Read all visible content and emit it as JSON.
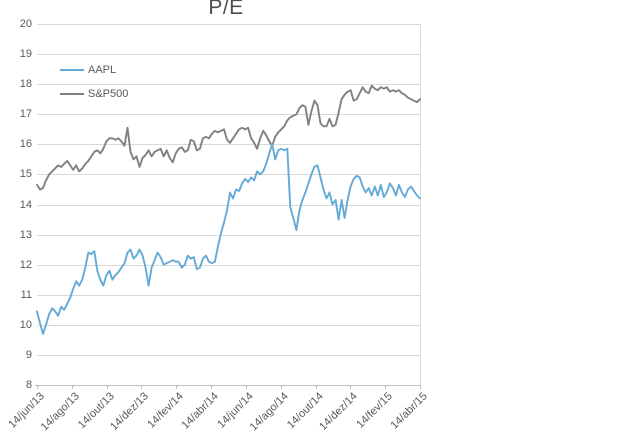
{
  "title": "P/E",
  "colors": {
    "aapl_line": "#64aad7",
    "sp500_line": "#808080",
    "gridline": "#d9d9d9",
    "axis_line": "#bfbfbf",
    "label_text": "#595959",
    "title_text": "#4e4e4e",
    "background": "#ffffff"
  },
  "chart_data": {
    "type": "line",
    "title": "P/E",
    "xlabel": "",
    "ylabel": "",
    "ylim": [
      8,
      20
    ],
    "grid": "horizontal",
    "legend_position": "upper-left-inside",
    "yticks": [
      20,
      19,
      18,
      17,
      16,
      15,
      14,
      13,
      12,
      11,
      10,
      9,
      8
    ],
    "x_tick_labels": [
      "14/jun/13",
      "14/ago/13",
      "14/out/13",
      "14/dez/13",
      "14/fev/14",
      "14/abr/14",
      "14/jun/14",
      "14/ago/14",
      "14/out/14",
      "14/dez/14",
      "14/fev/15",
      "14/abr/15"
    ],
    "series": [
      {
        "name": "AAPL",
        "color": "#64aad7",
        "values": [
          10.45,
          10.05,
          9.7,
          10.0,
          10.35,
          10.55,
          10.45,
          10.3,
          10.6,
          10.5,
          10.7,
          10.9,
          11.2,
          11.45,
          11.3,
          11.5,
          11.9,
          12.4,
          12.35,
          12.45,
          11.8,
          11.5,
          11.3,
          11.65,
          11.8,
          11.5,
          11.65,
          11.75,
          11.9,
          12.05,
          12.4,
          12.5,
          12.2,
          12.3,
          12.5,
          12.3,
          11.9,
          11.3,
          11.9,
          12.15,
          12.4,
          12.25,
          12.0,
          12.05,
          12.1,
          12.15,
          12.1,
          12.1,
          11.9,
          12.0,
          12.3,
          12.2,
          12.25,
          11.85,
          11.9,
          12.2,
          12.3,
          12.1,
          12.05,
          12.1,
          12.6,
          13.05,
          13.4,
          13.8,
          14.4,
          14.2,
          14.5,
          14.45,
          14.7,
          14.85,
          14.75,
          14.9,
          14.8,
          15.1,
          15.0,
          15.1,
          15.35,
          15.7,
          16.0,
          15.5,
          15.8,
          15.85,
          15.8,
          15.85,
          13.9,
          13.55,
          13.15,
          13.8,
          14.15,
          14.4,
          14.7,
          15.0,
          15.25,
          15.3,
          14.9,
          14.5,
          14.2,
          14.4,
          14.0,
          14.15,
          13.5,
          14.15,
          13.55,
          14.15,
          14.6,
          14.85,
          14.95,
          14.9,
          14.6,
          14.4,
          14.55,
          14.3,
          14.6,
          14.3,
          14.65,
          14.25,
          14.4,
          14.7,
          14.55,
          14.3,
          14.65,
          14.4,
          14.25,
          14.5,
          14.6,
          14.45,
          14.3,
          14.2
        ]
      },
      {
        "name": "S&P500",
        "color": "#808080",
        "values": [
          14.65,
          14.5,
          14.55,
          14.8,
          15.0,
          15.1,
          15.2,
          15.3,
          15.25,
          15.35,
          15.45,
          15.3,
          15.15,
          15.3,
          15.1,
          15.2,
          15.35,
          15.45,
          15.6,
          15.75,
          15.8,
          15.7,
          15.85,
          16.1,
          16.2,
          16.2,
          16.15,
          16.2,
          16.1,
          15.95,
          16.55,
          15.75,
          15.5,
          15.6,
          15.25,
          15.55,
          15.65,
          15.8,
          15.6,
          15.75,
          15.8,
          15.85,
          15.6,
          15.8,
          15.55,
          15.4,
          15.7,
          15.85,
          15.9,
          15.75,
          15.8,
          16.15,
          16.1,
          15.8,
          15.85,
          16.2,
          16.25,
          16.2,
          16.35,
          16.45,
          16.4,
          16.45,
          16.5,
          16.15,
          16.05,
          16.2,
          16.35,
          16.5,
          16.55,
          16.5,
          16.55,
          16.2,
          16.05,
          15.85,
          16.2,
          16.45,
          16.3,
          16.1,
          15.95,
          16.25,
          16.4,
          16.5,
          16.6,
          16.8,
          16.9,
          16.95,
          17.0,
          17.2,
          17.3,
          17.25,
          16.65,
          17.1,
          17.45,
          17.3,
          16.7,
          16.6,
          16.6,
          16.85,
          16.6,
          16.65,
          17.05,
          17.5,
          17.65,
          17.75,
          17.8,
          17.45,
          17.5,
          17.7,
          17.9,
          17.75,
          17.7,
          17.95,
          17.85,
          17.8,
          17.9,
          17.85,
          17.9,
          17.75,
          17.8,
          17.75,
          17.8,
          17.7,
          17.65,
          17.55,
          17.5,
          17.45,
          17.4,
          17.5
        ]
      }
    ]
  }
}
